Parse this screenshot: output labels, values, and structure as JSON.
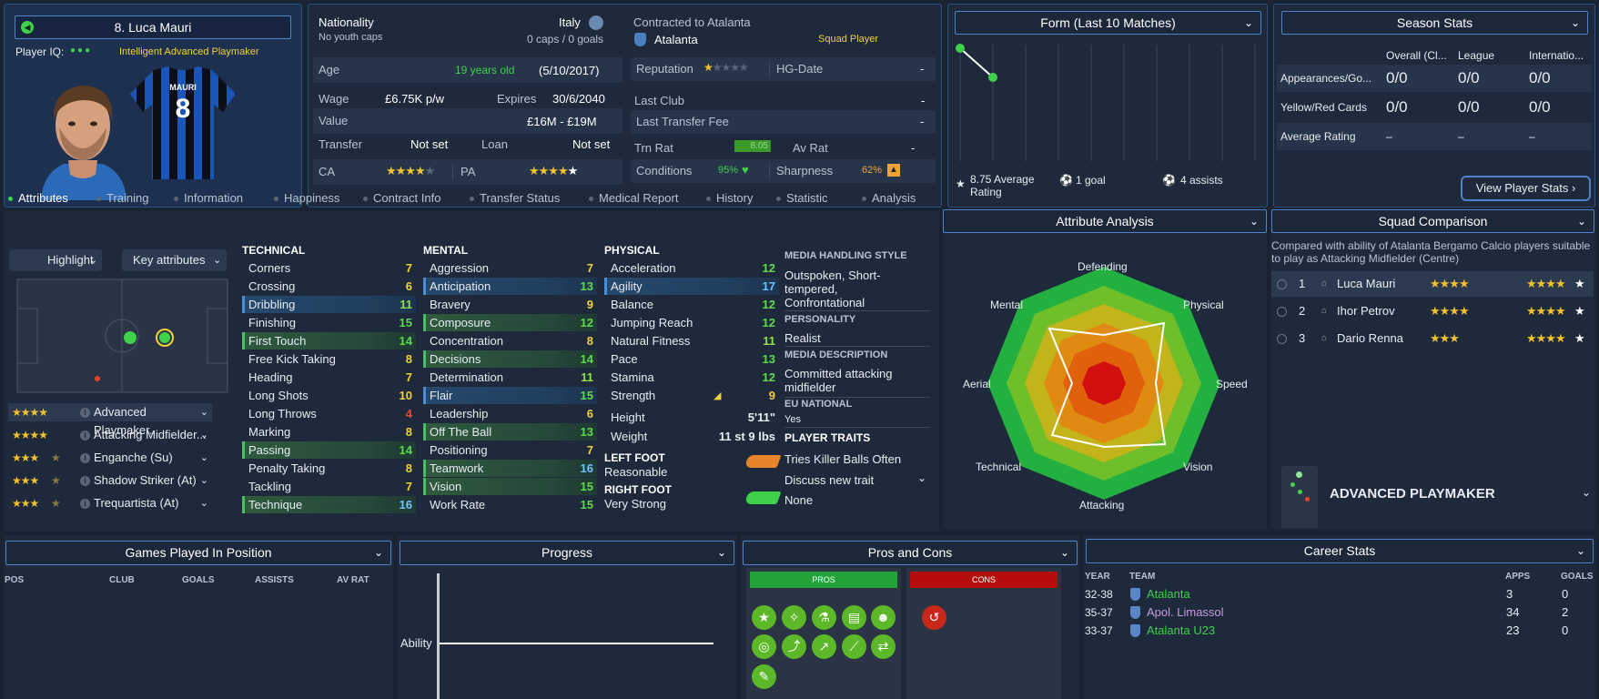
{
  "player": {
    "name": "8. Luca Mauri",
    "iq_label": "Player IQ:",
    "iq_role": "Intelligent  Advanced Playmaker",
    "shirt_name": "MAURI",
    "shirt_number": "8"
  },
  "info": {
    "nationality_label": "Nationality",
    "nationality": "Italy",
    "youth_caps": "No youth caps",
    "caps": "0 caps / 0 goals",
    "contracted_label": "Contracted to Atalanta",
    "club": "Atalanta",
    "squad_status": "Squad Player",
    "age_label": "Age",
    "age": "19 years old",
    "dob": "(5/10/2017)",
    "reputation_label": "Reputation",
    "hg_label": "HG-Date",
    "hg_value": "-",
    "wage_label": "Wage",
    "wage": "£6.75K p/w",
    "expires_label": "Expires",
    "expires": "30/6/2040",
    "last_club_label": "Last Club",
    "last_club": "-",
    "value_label": "Value",
    "value": "£16M - £19M",
    "last_fee_label": "Last Transfer Fee",
    "last_fee": "-",
    "transfer_label": "Transfer",
    "transfer": "Not set",
    "loan_label": "Loan",
    "loan": "Not set",
    "trn_label": "Trn Rat",
    "trn": "8.05",
    "avrat_label": "Av Rat",
    "avrat": "-",
    "ca_label": "CA",
    "pa_label": "PA",
    "conditions_label": "Conditions",
    "conditions": "95%",
    "sharpness_label": "Sharpness",
    "sharpness": "62%"
  },
  "form": {
    "title": "Form (Last 10 Matches)",
    "avg": "8.75 Average Rating",
    "goals": "1 goal",
    "assists": "4 assists"
  },
  "season": {
    "title": "Season Stats",
    "cols": [
      "Overall (Cl...",
      "League",
      "Internatio..."
    ],
    "rows": [
      {
        "label": "Appearances/Go...",
        "v": [
          "0/0",
          "0/0",
          "0/0"
        ]
      },
      {
        "label": "Yellow/Red Cards",
        "v": [
          "0/0",
          "0/0",
          "0/0"
        ]
      },
      {
        "label": "Average Rating",
        "v": [
          "–",
          "–",
          "–"
        ]
      }
    ],
    "button": "View Player Stats"
  },
  "tabs": [
    "Attributes",
    "Training",
    "Information",
    "Happiness",
    "Contract Info",
    "Transfer Status",
    "Medical Report",
    "History",
    "Statistic",
    "Analysis"
  ],
  "controls": {
    "highlight": "Highlight",
    "key_attributes": "Key attributes"
  },
  "roles": [
    {
      "name": "Advanced Playmaker...",
      "stars": "★★★★",
      "half": ""
    },
    {
      "name": "Attacking Midfielder...",
      "stars": "★★★★",
      "half": ""
    },
    {
      "name": "Enganche (Su)",
      "stars": "★★★",
      "half": "★"
    },
    {
      "name": "Shadow Striker (At)",
      "stars": "★★★",
      "half": "★"
    },
    {
      "name": "Trequartista (At)",
      "stars": "★★★",
      "half": "★"
    }
  ],
  "technical": {
    "title": "TECHNICAL",
    "items": [
      {
        "n": "Corners",
        "v": "7",
        "c": "v-y",
        "h": ""
      },
      {
        "n": "Crossing",
        "v": "6",
        "c": "v-y",
        "h": ""
      },
      {
        "n": "Dribbling",
        "v": "11",
        "c": "v-lg",
        "h": "hl-blue"
      },
      {
        "n": "Finishing",
        "v": "15",
        "c": "v-g",
        "h": ""
      },
      {
        "n": "First Touch",
        "v": "14",
        "c": "v-g",
        "h": "hl-green"
      },
      {
        "n": "Free Kick Taking",
        "v": "8",
        "c": "v-y",
        "h": ""
      },
      {
        "n": "Heading",
        "v": "7",
        "c": "v-y",
        "h": ""
      },
      {
        "n": "Long Shots",
        "v": "10",
        "c": "v-y",
        "h": ""
      },
      {
        "n": "Long Throws",
        "v": "4",
        "c": "v-r",
        "h": ""
      },
      {
        "n": "Marking",
        "v": "8",
        "c": "v-y",
        "h": ""
      },
      {
        "n": "Passing",
        "v": "14",
        "c": "v-g",
        "h": "hl-green"
      },
      {
        "n": "Penalty Taking",
        "v": "8",
        "c": "v-y",
        "h": ""
      },
      {
        "n": "Tackling",
        "v": "7",
        "c": "v-y",
        "h": ""
      },
      {
        "n": "Technique",
        "v": "16",
        "c": "v-b",
        "h": "hl-green"
      }
    ]
  },
  "mental": {
    "title": "MENTAL",
    "items": [
      {
        "n": "Aggression",
        "v": "7",
        "c": "v-y",
        "h": ""
      },
      {
        "n": "Anticipation",
        "v": "13",
        "c": "v-g",
        "h": "hl-blue"
      },
      {
        "n": "Bravery",
        "v": "9",
        "c": "v-y",
        "h": ""
      },
      {
        "n": "Composure",
        "v": "12",
        "c": "v-g",
        "h": "hl-green"
      },
      {
        "n": "Concentration",
        "v": "8",
        "c": "v-y",
        "h": ""
      },
      {
        "n": "Decisions",
        "v": "14",
        "c": "v-g",
        "h": "hl-green"
      },
      {
        "n": "Determination",
        "v": "11",
        "c": "v-lg",
        "h": ""
      },
      {
        "n": "Flair",
        "v": "15",
        "c": "v-g",
        "h": "hl-blue"
      },
      {
        "n": "Leadership",
        "v": "6",
        "c": "v-y",
        "h": ""
      },
      {
        "n": "Off The Ball",
        "v": "13",
        "c": "v-g",
        "h": "hl-green"
      },
      {
        "n": "Positioning",
        "v": "7",
        "c": "v-y",
        "h": ""
      },
      {
        "n": "Teamwork",
        "v": "16",
        "c": "v-b",
        "h": "hl-green"
      },
      {
        "n": "Vision",
        "v": "15",
        "c": "v-g",
        "h": "hl-green"
      },
      {
        "n": "Work Rate",
        "v": "15",
        "c": "v-g",
        "h": ""
      }
    ]
  },
  "physical": {
    "title": "PHYSICAL",
    "items": [
      {
        "n": "Acceleration",
        "v": "12",
        "c": "v-g",
        "h": ""
      },
      {
        "n": "Agility",
        "v": "17",
        "c": "v-b",
        "h": "hl-blue"
      },
      {
        "n": "Balance",
        "v": "12",
        "c": "v-g",
        "h": ""
      },
      {
        "n": "Jumping Reach",
        "v": "12",
        "c": "v-g",
        "h": ""
      },
      {
        "n": "Natural Fitness",
        "v": "11",
        "c": "v-lg",
        "h": ""
      },
      {
        "n": "Pace",
        "v": "13",
        "c": "v-g",
        "h": ""
      },
      {
        "n": "Stamina",
        "v": "12",
        "c": "v-g",
        "h": ""
      },
      {
        "n": "Strength",
        "v": "9",
        "c": "v-y",
        "h": ""
      }
    ],
    "height_label": "Height",
    "height": "5'11\"",
    "weight_label": "Weight",
    "weight": "11 st 9 lbs",
    "left_foot_label": "LEFT FOOT",
    "left_foot": "Reasonable",
    "right_foot_label": "RIGHT FOOT",
    "right_foot": "Very Strong"
  },
  "media": {
    "style_label": "MEDIA HANDLING STYLE",
    "style": "Outspoken, Short-tempered, Confrontational",
    "personality_label": "PERSONALITY",
    "personality": "Realist",
    "desc_label": "MEDIA DESCRIPTION",
    "desc": "Committed attacking midfielder",
    "eu_label": "EU NATIONAL",
    "eu": "Yes",
    "traits_label": "PLAYER TRAITS",
    "trait1": "Tries Killer Balls Often",
    "trait2": "Discuss new trait",
    "trait3": "None"
  },
  "analysis": {
    "title": "Attribute Analysis",
    "axes": [
      "Defending",
      "Physical",
      "Speed",
      "Vision",
      "Attacking",
      "Technical",
      "Aerial",
      "Mental"
    ]
  },
  "squad": {
    "title": "Squad Comparison",
    "desc": "Compared with ability of Atalanta Bergamo Calcio players suitable to play as Attacking Midfielder (Centre)",
    "rows": [
      {
        "rank": "1",
        "name": "Luca Mauri",
        "s1": "★★★★",
        "s1e": "",
        "s2": "★★★★",
        "s2w": "★"
      },
      {
        "rank": "2",
        "name": "Ihor Petrov",
        "s1": "★★★★",
        "s1e": "",
        "s2": "★★★★",
        "s2w": "★"
      },
      {
        "rank": "3",
        "name": "Dario Renna",
        "s1": "★★★",
        "s1e": "",
        "s2": "★★★★",
        "s2w": "★"
      }
    ],
    "role": "ADVANCED PLAYMAKER"
  },
  "games": {
    "title": "Games Played In Position",
    "cols": [
      "POS",
      "CLUB",
      "GOALS",
      "ASSISTS",
      "AV RAT"
    ]
  },
  "progress": {
    "title": "Progress",
    "label": "Ability"
  },
  "proscons": {
    "title": "Pros and Cons",
    "pros": "PROS",
    "cons": "CONS"
  },
  "career": {
    "title": "Career Stats",
    "cols": [
      "YEAR",
      "TEAM",
      "APPS",
      "GOALS"
    ],
    "rows": [
      {
        "year": "32-38",
        "team": "Atalanta",
        "apps": "3",
        "goals": "0",
        "color": "#3fd14a"
      },
      {
        "year": "35-37",
        "team": "Apol. Limassol",
        "apps": "34",
        "goals": "2",
        "color": "#c89ae0"
      },
      {
        "year": "33-37",
        "team": "Atalanta U23",
        "apps": "23",
        "goals": "0",
        "color": "#3fd14a"
      }
    ]
  }
}
